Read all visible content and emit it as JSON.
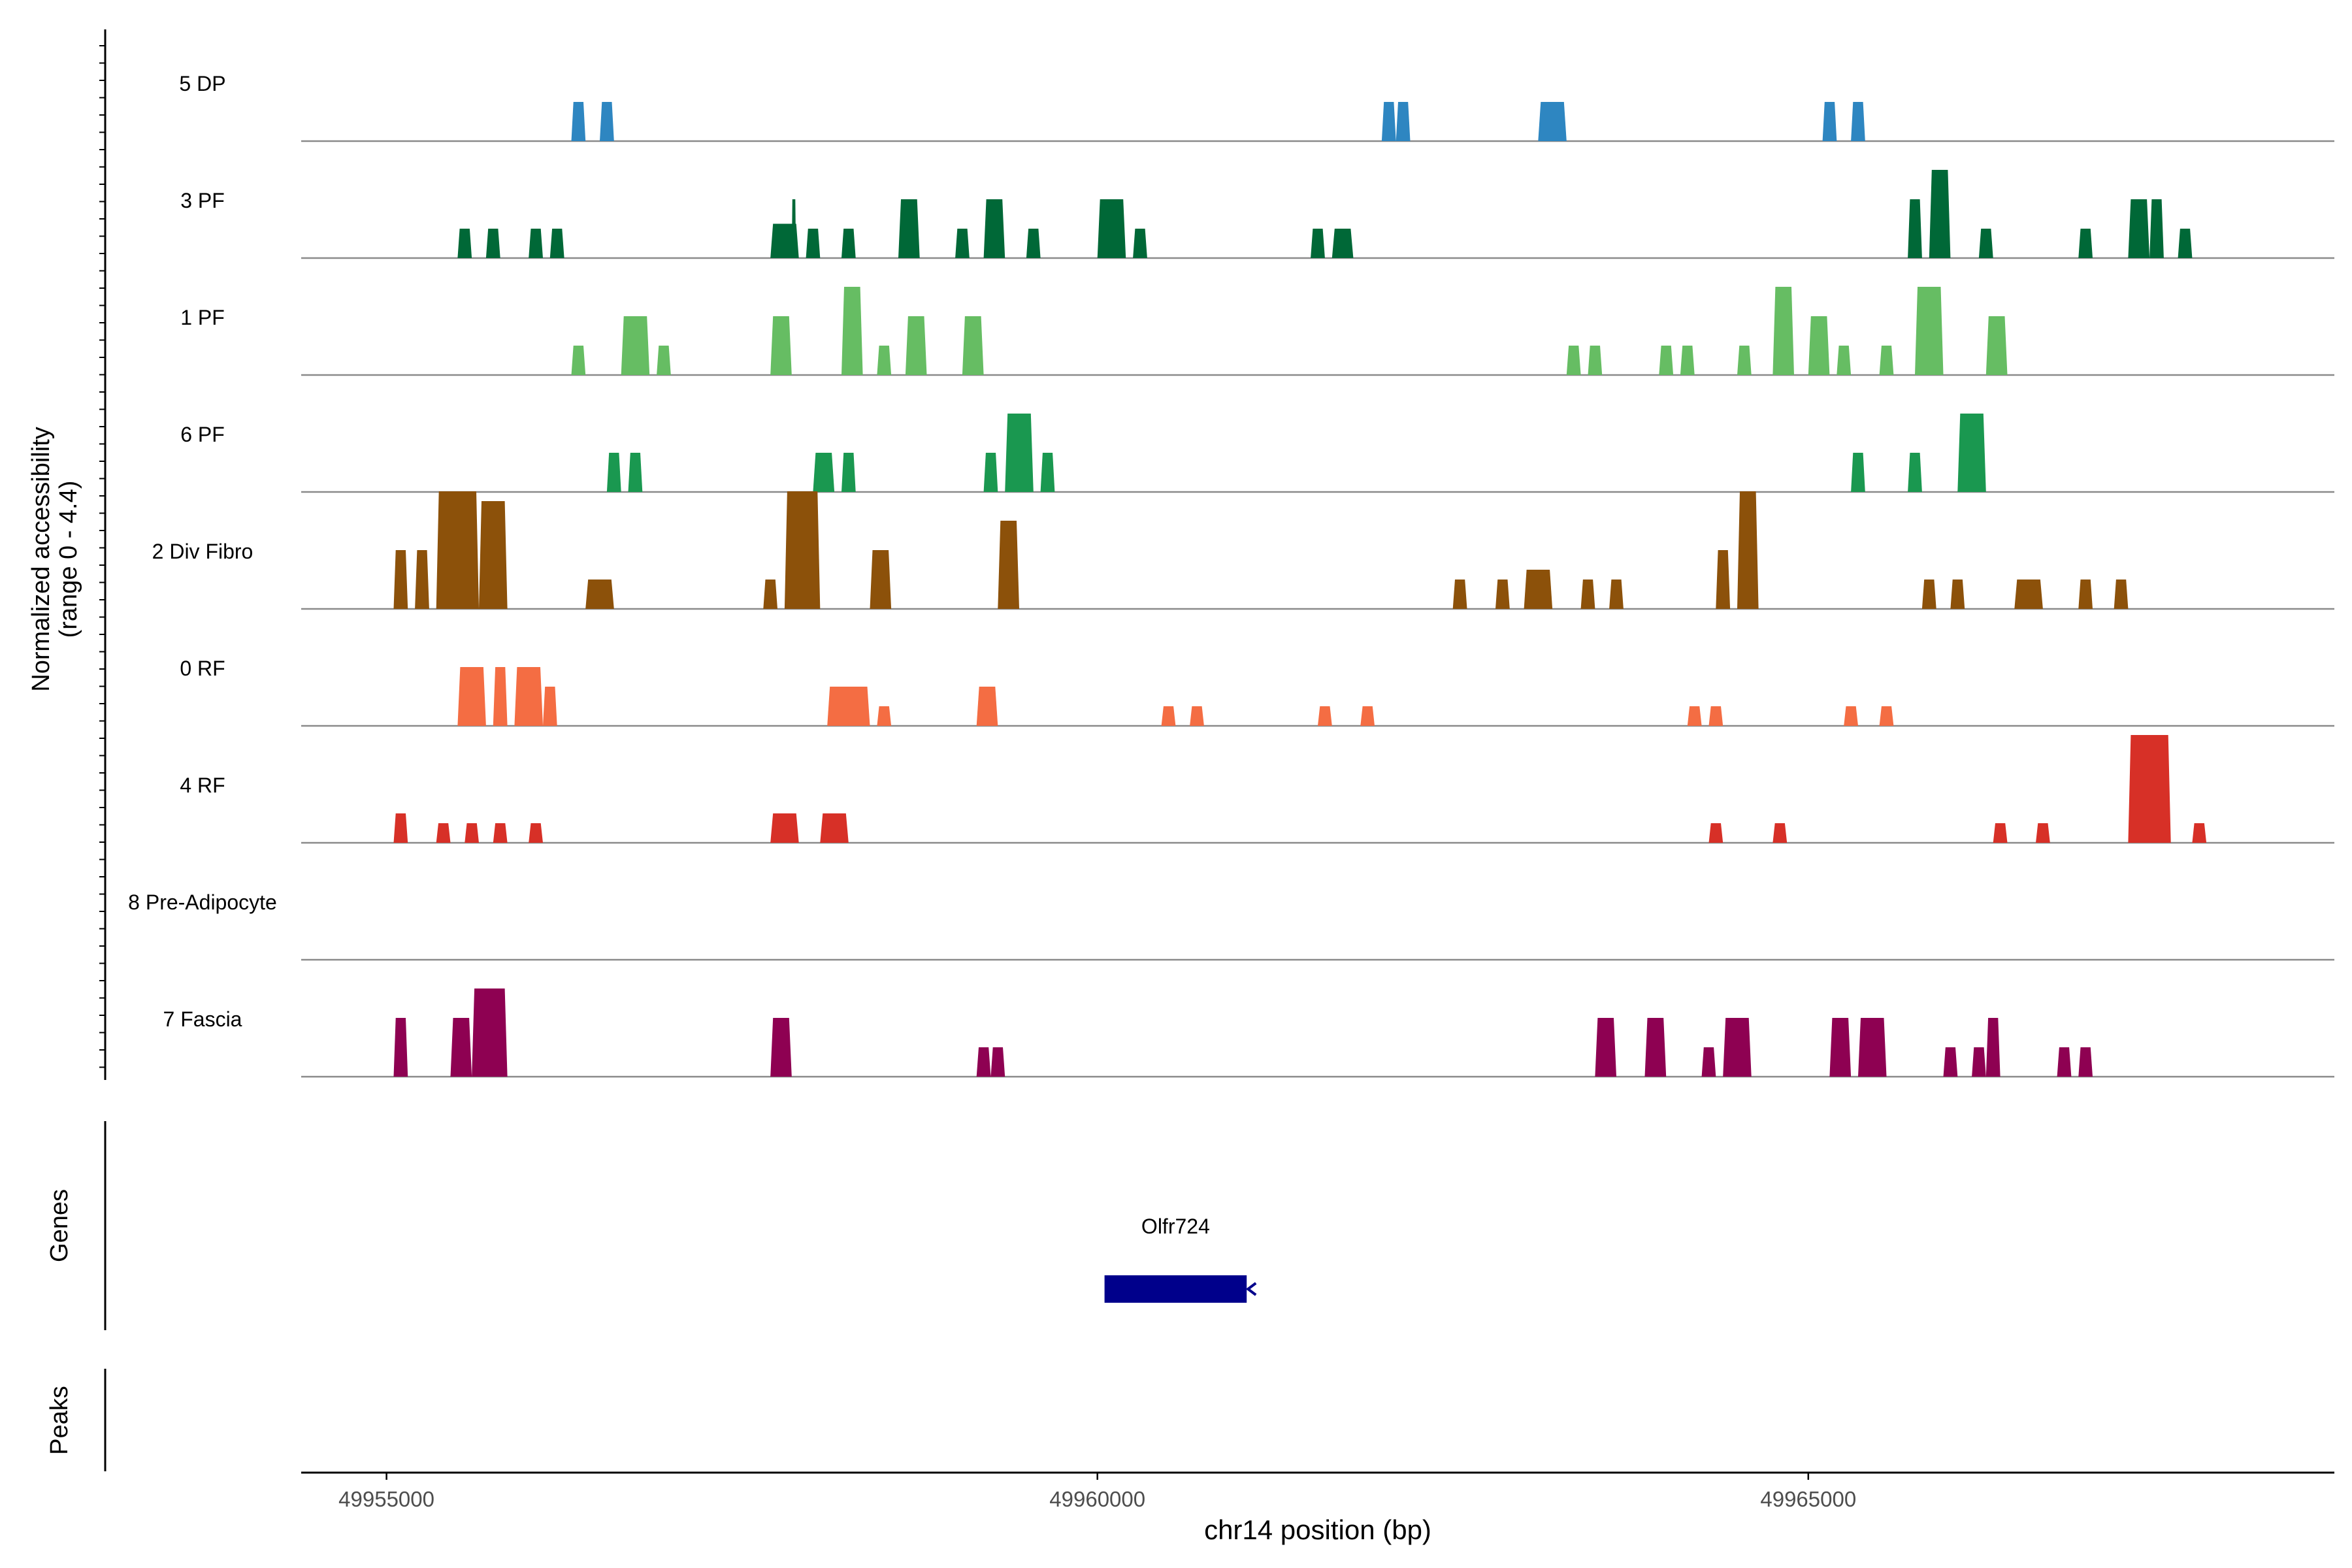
{
  "chart_data": {
    "type": "area",
    "title": "",
    "xlabel": "chr14 position (bp)",
    "ylabel_line1": "Normalized accessibility",
    "ylabel_line2": "(range 0 - 4.4)",
    "y_range": [
      0,
      4.4
    ],
    "xlim": [
      49954400,
      49968700
    ],
    "x_ticks": [
      49955000,
      49960000,
      49965000
    ],
    "x_tick_labels": [
      "49955000",
      "49960000",
      "49965000"
    ],
    "tracks": [
      {
        "name": "5 DP",
        "color": "#2E86C1",
        "peaks": [
          [
            49956300,
            49956400,
            0.8
          ],
          [
            49956500,
            49956600,
            0.8
          ],
          [
            49962000,
            49962100,
            0.8
          ],
          [
            49962100,
            49962200,
            0.8
          ],
          [
            49963100,
            49963300,
            0.8
          ],
          [
            49965100,
            49965200,
            0.8
          ],
          [
            49965300,
            49965400,
            0.8
          ]
        ]
      },
      {
        "name": "3 PF",
        "color": "#006837",
        "peaks": [
          [
            49955500,
            49955600,
            0.6
          ],
          [
            49955700,
            49955800,
            0.6
          ],
          [
            49956000,
            49956100,
            0.6
          ],
          [
            49956150,
            49956250,
            0.6
          ],
          [
            49957700,
            49957900,
            0.7
          ],
          [
            49957850,
            49957880,
            1.2
          ],
          [
            49957950,
            49958050,
            0.6
          ],
          [
            49958200,
            49958300,
            0.6
          ],
          [
            49958600,
            49958750,
            1.2
          ],
          [
            49959000,
            49959100,
            0.6
          ],
          [
            49959200,
            49959350,
            1.2
          ],
          [
            49959500,
            49959600,
            0.6
          ],
          [
            49960000,
            49960200,
            1.2
          ],
          [
            49960250,
            49960350,
            0.6
          ],
          [
            49961500,
            49961600,
            0.6
          ],
          [
            49961650,
            49961800,
            0.6
          ],
          [
            49965700,
            49965800,
            1.2
          ],
          [
            49965850,
            49966000,
            1.8
          ],
          [
            49966200,
            49966300,
            0.6
          ],
          [
            49966900,
            49967000,
            0.6
          ],
          [
            49967250,
            49967400,
            1.2
          ],
          [
            49967400,
            49967500,
            1.2
          ],
          [
            49967600,
            49967700,
            0.6
          ]
        ]
      },
      {
        "name": "1 PF",
        "color": "#66BD63",
        "peaks": [
          [
            49956300,
            49956400,
            0.6
          ],
          [
            49956650,
            49956850,
            1.2
          ],
          [
            49956900,
            49957000,
            0.6
          ],
          [
            49957700,
            49957850,
            1.2
          ],
          [
            49958200,
            49958350,
            1.8
          ],
          [
            49958450,
            49958550,
            0.6
          ],
          [
            49958650,
            49958800,
            1.2
          ],
          [
            49959050,
            49959200,
            1.2
          ],
          [
            49963300,
            49963400,
            0.6
          ],
          [
            49963450,
            49963550,
            0.6
          ],
          [
            49963950,
            49964050,
            0.6
          ],
          [
            49964100,
            49964200,
            0.6
          ],
          [
            49964500,
            49964600,
            0.6
          ],
          [
            49964750,
            49964900,
            1.8
          ],
          [
            49965000,
            49965150,
            1.2
          ],
          [
            49965200,
            49965300,
            0.6
          ],
          [
            49965500,
            49965600,
            0.6
          ],
          [
            49965750,
            49965950,
            1.8
          ],
          [
            49966250,
            49966400,
            1.2
          ]
        ]
      },
      {
        "name": "6 PF",
        "color": "#1A9850",
        "peaks": [
          [
            49956550,
            49956650,
            0.8
          ],
          [
            49956700,
            49956800,
            0.8
          ],
          [
            49958000,
            49958150,
            0.8
          ],
          [
            49958200,
            49958300,
            0.8
          ],
          [
            49959200,
            49959300,
            0.8
          ],
          [
            49959350,
            49959550,
            1.6
          ],
          [
            49959600,
            49959700,
            0.8
          ],
          [
            49965300,
            49965400,
            0.8
          ],
          [
            49965700,
            49965800,
            0.8
          ],
          [
            49966050,
            49966250,
            1.6
          ]
        ]
      },
      {
        "name": "2 Div Fibro",
        "color": "#8C510A",
        "peaks": [
          [
            49955050,
            49955150,
            1.2
          ],
          [
            49955200,
            49955300,
            1.2
          ],
          [
            49955350,
            49955650,
            2.4
          ],
          [
            49955650,
            49955850,
            2.2
          ],
          [
            49956400,
            49956600,
            0.6
          ],
          [
            49957650,
            49957750,
            0.6
          ],
          [
            49957800,
            49958050,
            2.4
          ],
          [
            49958400,
            49958550,
            1.2
          ],
          [
            49959300,
            49959450,
            1.8
          ],
          [
            49962500,
            49962600,
            0.6
          ],
          [
            49962800,
            49962900,
            0.6
          ],
          [
            49963000,
            49963200,
            0.8
          ],
          [
            49963400,
            49963500,
            0.6
          ],
          [
            49963600,
            49963700,
            0.6
          ],
          [
            49964350,
            49964450,
            1.2
          ],
          [
            49964500,
            49964650,
            2.4
          ],
          [
            49965800,
            49965900,
            0.6
          ],
          [
            49966000,
            49966100,
            0.6
          ],
          [
            49966450,
            49966650,
            0.6
          ],
          [
            49966900,
            49967000,
            0.6
          ],
          [
            49967150,
            49967250,
            0.6
          ]
        ]
      },
      {
        "name": "0 RF",
        "color": "#F46D43",
        "peaks": [
          [
            49955500,
            49955700,
            1.2
          ],
          [
            49955750,
            49955850,
            1.2
          ],
          [
            49955900,
            49956100,
            1.2
          ],
          [
            49956100,
            49956200,
            0.8
          ],
          [
            49958100,
            49958400,
            0.8
          ],
          [
            49958450,
            49958550,
            0.4
          ],
          [
            49959150,
            49959300,
            0.8
          ],
          [
            49960450,
            49960550,
            0.4
          ],
          [
            49960650,
            49960750,
            0.4
          ],
          [
            49961550,
            49961650,
            0.4
          ],
          [
            49961850,
            49961950,
            0.4
          ],
          [
            49964150,
            49964250,
            0.4
          ],
          [
            49964300,
            49964400,
            0.4
          ],
          [
            49965250,
            49965350,
            0.4
          ],
          [
            49965500,
            49965600,
            0.4
          ]
        ]
      },
      {
        "name": "4 RF",
        "color": "#D73027",
        "peaks": [
          [
            49955050,
            49955150,
            0.6
          ],
          [
            49955350,
            49955450,
            0.4
          ],
          [
            49955550,
            49955650,
            0.4
          ],
          [
            49955750,
            49955850,
            0.4
          ],
          [
            49956000,
            49956100,
            0.4
          ],
          [
            49957700,
            49957900,
            0.6
          ],
          [
            49958050,
            49958250,
            0.6
          ],
          [
            49964300,
            49964400,
            0.4
          ],
          [
            49964750,
            49964850,
            0.4
          ],
          [
            49966300,
            49966400,
            0.4
          ],
          [
            49966600,
            49966700,
            0.4
          ],
          [
            49967250,
            49967550,
            2.2
          ],
          [
            49967700,
            49967800,
            0.4
          ]
        ]
      },
      {
        "name": "8 Pre-Adipocyte",
        "color": "#7F7F7F",
        "peaks": []
      },
      {
        "name": "7 Fascia",
        "color": "#8E0152",
        "peaks": [
          [
            49955050,
            49955150,
            1.2
          ],
          [
            49955450,
            49955600,
            1.2
          ],
          [
            49955600,
            49955850,
            1.8
          ],
          [
            49957700,
            49957850,
            1.2
          ],
          [
            49959150,
            49959250,
            0.6
          ],
          [
            49959250,
            49959350,
            0.6
          ],
          [
            49963500,
            49963650,
            1.2
          ],
          [
            49963850,
            49964000,
            1.2
          ],
          [
            49964250,
            49964350,
            0.6
          ],
          [
            49964400,
            49964600,
            1.2
          ],
          [
            49965150,
            49965300,
            1.2
          ],
          [
            49965350,
            49965550,
            1.2
          ],
          [
            49965950,
            49966050,
            0.6
          ],
          [
            49966150,
            49966250,
            0.6
          ],
          [
            49966250,
            49966350,
            1.2
          ],
          [
            49966750,
            49966850,
            0.6
          ],
          [
            49966900,
            49967000,
            0.6
          ]
        ]
      }
    ],
    "genes_panel": {
      "label": "Genes",
      "genes": [
        {
          "name": "Olfr724",
          "start": 49960050,
          "end": 49961050,
          "strand": "-",
          "color": "#00008B"
        }
      ]
    },
    "peaks_panel": {
      "label": "Peaks",
      "peaks": []
    }
  }
}
